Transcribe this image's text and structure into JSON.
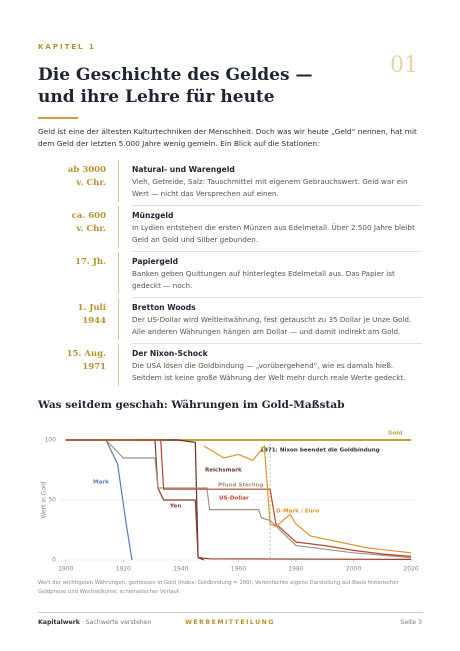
{
  "header": {
    "kicker": "KAPITEL 1",
    "number": "01",
    "title_lines": [
      "Die Geschichte des Geldes —",
      "und ihre Lehre für heute"
    ],
    "intro": "Geld ist eine der ältesten Kulturtechniken der Menschheit. Doch was wir heute „Geld“ nennen, hat mit dem Geld der letzten 5.000 Jahre wenig gemein. Ein Blick auf die Stationen:"
  },
  "timeline": [
    {
      "date": [
        "ab 3000",
        "v. Chr."
      ],
      "title": "Natural- und Warengeld",
      "text": "Vieh, Getreide, Salz: Tauschmittel mit eigenem Gebrauchswert. Geld war ein Wert — nicht das Versprechen auf einen."
    },
    {
      "date": [
        "ca. 600",
        "v. Chr."
      ],
      "title": "Münzgeld",
      "text": "In Lydien entstehen die ersten Münzen aus Edelmetall. Über 2.500 Jahre bleibt Geld an Gold und Silber gebunden."
    },
    {
      "date": [
        "17. Jh."
      ],
      "title": "Papiergeld",
      "text": "Banken geben Quittungen auf hinterlegtes Edelmetall aus. Das Papier ist gedeckt — noch."
    },
    {
      "date": [
        "1. Juli",
        "1944"
      ],
      "title": "Bretton Woods",
      "text": "Der US-Dollar wird Weltleitwährung, fest getauscht zu 35 Dollar je Unze Gold. Alle anderen Währungen hängen am Dollar — und damit indirekt am Gold."
    },
    {
      "date": [
        "15. Aug.",
        "1971"
      ],
      "title": "Der Nixon-Schock",
      "text": "Die USA lösen die Goldbindung — „vorübergehend“, wie es damals hieß. Seitdem ist keine große Währung der Welt mehr durch reale Werte gedeckt."
    }
  ],
  "section_title": "Was seitdem geschah: Währungen im Gold-Maßstab",
  "chart_data": {
    "type": "line",
    "y_label": "Wert in Gold",
    "xlim": [
      1898,
      2021
    ],
    "ylim": [
      0,
      100
    ],
    "xticks": [
      1900,
      1920,
      1940,
      1960,
      1980,
      2000,
      2020
    ],
    "yticks": [
      0,
      50,
      100
    ],
    "grid": true,
    "annotation": {
      "x": 1971,
      "text": "1971: Nixon beendet die Goldbindung"
    },
    "series": [
      {
        "name": "Gold",
        "color": "#c9a13b",
        "x": [
          1900,
          2020
        ],
        "values": [
          100,
          100
        ]
      },
      {
        "name": "Mark",
        "color": "#4f7fb8",
        "x": [
          1900,
          1914,
          1918,
          1921,
          1923
        ],
        "values": [
          100,
          100,
          80,
          30,
          0
        ]
      },
      {
        "name": "Reichsmark",
        "color": "#5e3526",
        "x": [
          1924,
          1939,
          1945,
          1946,
          1948
        ],
        "values": [
          100,
          100,
          98,
          2,
          0
        ]
      },
      {
        "name": "Yen",
        "color": "#8e3b28",
        "x": [
          1900,
          1931,
          1932,
          1934,
          1945,
          1946,
          1950,
          2020
        ],
        "values": [
          100,
          100,
          60,
          50,
          50,
          2,
          1,
          0.5
        ]
      },
      {
        "name": "Pfund Sterling",
        "color": "#a39383",
        "x": [
          1900,
          1914,
          1920,
          1931,
          1932,
          1949,
          1950,
          1967,
          1968,
          1971,
          1980,
          2000,
          2020
        ],
        "values": [
          100,
          100,
          85,
          85,
          60,
          60,
          42,
          42,
          35,
          33,
          12,
          6,
          2
        ]
      },
      {
        "name": "US-Dollar",
        "color": "#b8462c",
        "x": [
          1900,
          1933,
          1934,
          1971,
          1973,
          1980,
          1990,
          2000,
          2010,
          2020
        ],
        "values": [
          100,
          100,
          59,
          59,
          30,
          15,
          12,
          8,
          5,
          3
        ]
      },
      {
        "name": "D-Mark / Euro",
        "color": "#dd952b",
        "x": [
          1948,
          1955,
          1960,
          1965,
          1969,
          1971,
          1973,
          1978,
          1980,
          1985,
          1995,
          2005,
          2020
        ],
        "values": [
          95,
          85,
          88,
          83,
          95,
          30,
          28,
          38,
          30,
          20,
          15,
          10,
          6
        ]
      }
    ]
  },
  "footnote": "Wert der wichtigsten Währungen, gemessen in Gold (Index: Goldbindung = 100). Vereinfachte eigene Darstellung auf Basis historischer Goldpreise und Wechselkurse; schematischer Verlauf.",
  "footer": {
    "brand": "Kapitalwerk",
    "tagline": " · Sachwerte verstehen",
    "label": "WERBEMITTEILUNG",
    "page": "Seite 3"
  }
}
